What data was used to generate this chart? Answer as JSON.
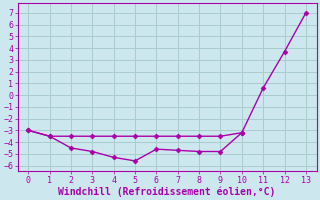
{
  "x_all": [
    0,
    1,
    2,
    3,
    4,
    5,
    6,
    7,
    8,
    9,
    10,
    11,
    12,
    13
  ],
  "line1_x": [
    0,
    1,
    2,
    3,
    4,
    5,
    6,
    7,
    8,
    9,
    10,
    11,
    12,
    13
  ],
  "line1_y": [
    -3.0,
    -3.5,
    -3.5,
    -3.5,
    -3.5,
    -3.5,
    -3.5,
    -3.5,
    -3.5,
    -3.5,
    -3.2,
    0.6,
    3.7,
    7.0
  ],
  "line2_x": [
    0,
    1,
    2,
    3,
    4,
    5,
    6,
    7,
    8,
    9,
    10
  ],
  "line2_y": [
    -3.0,
    -3.5,
    -4.5,
    -4.8,
    -5.3,
    -5.6,
    -4.6,
    -4.7,
    -4.8,
    -4.8,
    -3.2
  ],
  "bg_color": "#cce8ee",
  "grid_color": "#aacccc",
  "line_color": "#aa00aa",
  "marker": "D",
  "markersize": 2.5,
  "linewidth": 1.0,
  "xlabel": "Windchill (Refroidissement éolien,°C)",
  "xlabel_fontsize": 7,
  "ytick_labels": [
    "7",
    "6",
    "5",
    "4",
    "3",
    "2",
    "1",
    "0",
    "-1",
    "-2",
    "-3",
    "-4",
    "-5",
    "-6"
  ],
  "yticks": [
    7,
    6,
    5,
    4,
    3,
    2,
    1,
    0,
    -1,
    -2,
    -3,
    -4,
    -5,
    -6
  ],
  "xticks": [
    0,
    1,
    2,
    3,
    4,
    5,
    6,
    7,
    8,
    9,
    10,
    11,
    12,
    13
  ],
  "ylim": [
    -6.5,
    7.8
  ],
  "xlim": [
    -0.5,
    13.5
  ]
}
